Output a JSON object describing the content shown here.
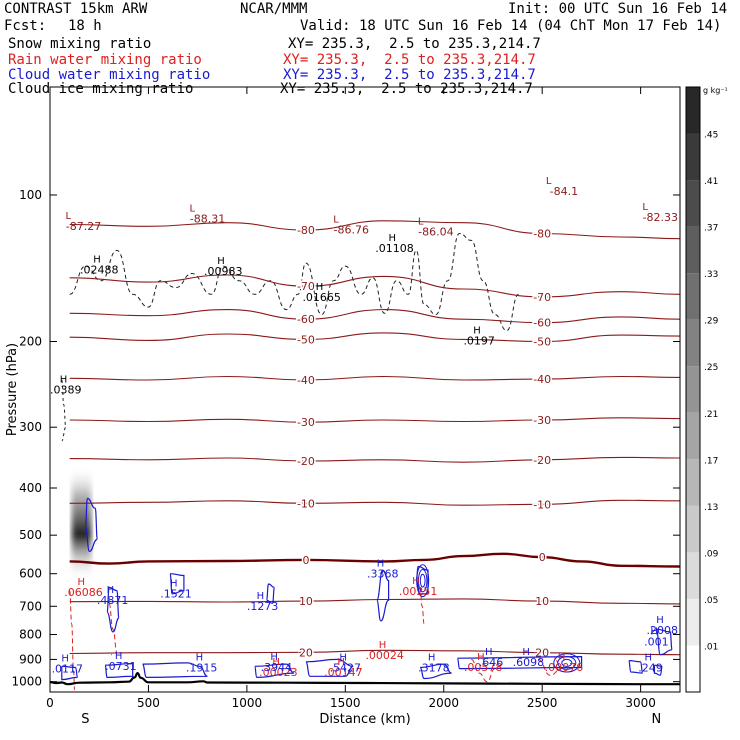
{
  "header": {
    "model": "CONTRAST 15km ARW",
    "center": "NCAR/MMM",
    "init": "Init: 00 UTC Sun 16 Feb 14",
    "fcst_label": "Fcst:",
    "fcst_value": "18 h",
    "valid": "Valid: 18 UTC Sun 16 Feb 14 (04 ChT Mon 17 Feb 14)",
    "fields": [
      {
        "name": "Snow mixing ratio",
        "xy": "XY= 235.3,  2.5 to 235.3,214.7",
        "color": "#000000"
      },
      {
        "name": "Rain water mixing ratio",
        "xy": "XY= 235.3,  2.5 to 235.3,214.7",
        "color": "#dd2020"
      },
      {
        "name": "Cloud water mixing ratio",
        "xy": "XY= 235.3,  2.5 to 235.3,214.7",
        "color": "#1a1ad0"
      },
      {
        "name": "Cloud ice mixing ratio",
        "xy": "XY= 235.3,  2.5 to 235.3,214.7",
        "color": "#000000"
      }
    ]
  },
  "chart_data": {
    "type": "cross-section",
    "xlabel": "Distance (km)",
    "ylabel": "Pressure (hPa)",
    "xlim": [
      0,
      3200
    ],
    "ylim": [
      1050,
      60
    ],
    "x_ticks": [
      0,
      500,
      1000,
      1500,
      2000,
      2500,
      3000
    ],
    "y_ticks": [
      100,
      200,
      300,
      400,
      500,
      600,
      700,
      800,
      900,
      1000
    ],
    "direction_labels": [
      {
        "x": 180,
        "text": "S"
      },
      {
        "x": 3080,
        "text": "N"
      }
    ],
    "colorbar": {
      "unit": "g kg⁻¹",
      "levels": [
        ".01",
        ".05",
        ".09",
        ".13",
        ".17",
        ".21",
        ".25",
        ".29",
        ".33",
        ".37",
        ".41",
        ".45"
      ]
    },
    "temperature_isotherms": [
      {
        "value": "-80",
        "points": [
          [
            100,
            115
          ],
          [
            500,
            116
          ],
          [
            900,
            114
          ],
          [
            1300,
            118
          ],
          [
            1700,
            113
          ],
          [
            2100,
            114
          ],
          [
            2500,
            120
          ],
          [
            2900,
            122
          ],
          [
            3200,
            123
          ]
        ]
      },
      {
        "value": "-70",
        "points": [
          [
            100,
            148
          ],
          [
            500,
            151
          ],
          [
            900,
            146
          ],
          [
            1300,
            154
          ],
          [
            1700,
            147
          ],
          [
            2100,
            156
          ],
          [
            2500,
            162
          ],
          [
            2900,
            158
          ],
          [
            3200,
            160
          ]
        ]
      },
      {
        "value": "-60",
        "points": [
          [
            100,
            175
          ],
          [
            500,
            177
          ],
          [
            900,
            172
          ],
          [
            1300,
            180
          ],
          [
            1700,
            172
          ],
          [
            2100,
            180
          ],
          [
            2500,
            183
          ],
          [
            2900,
            178
          ],
          [
            3200,
            180
          ]
        ]
      },
      {
        "value": "-50",
        "points": [
          [
            100,
            196
          ],
          [
            500,
            199
          ],
          [
            900,
            193
          ],
          [
            1300,
            198
          ],
          [
            1700,
            192
          ],
          [
            2100,
            198
          ],
          [
            2500,
            200
          ],
          [
            2900,
            194
          ],
          [
            3200,
            195
          ]
        ]
      },
      {
        "value": "-40",
        "points": [
          [
            100,
            238
          ],
          [
            500,
            240
          ],
          [
            900,
            236
          ],
          [
            1300,
            240
          ],
          [
            1700,
            236
          ],
          [
            2100,
            240
          ],
          [
            2500,
            239
          ],
          [
            2900,
            236
          ],
          [
            3200,
            237
          ]
        ]
      },
      {
        "value": "-30",
        "points": [
          [
            100,
            290
          ],
          [
            500,
            292
          ],
          [
            900,
            289
          ],
          [
            1300,
            293
          ],
          [
            1700,
            290
          ],
          [
            2100,
            292
          ],
          [
            2500,
            290
          ],
          [
            2900,
            287
          ],
          [
            3200,
            288
          ]
        ]
      },
      {
        "value": "-20",
        "points": [
          [
            100,
            348
          ],
          [
            500,
            350
          ],
          [
            900,
            347
          ],
          [
            1300,
            352
          ],
          [
            1700,
            350
          ],
          [
            2100,
            354
          ],
          [
            2500,
            350
          ],
          [
            2900,
            346
          ],
          [
            3200,
            347
          ]
        ]
      },
      {
        "value": "-10",
        "points": [
          [
            100,
            430
          ],
          [
            500,
            428
          ],
          [
            900,
            425
          ],
          [
            1300,
            430
          ],
          [
            1700,
            428
          ],
          [
            2100,
            434
          ],
          [
            2500,
            432
          ],
          [
            2900,
            424
          ],
          [
            3200,
            425
          ]
        ]
      },
      {
        "value": "0",
        "points": [
          [
            100,
            566
          ],
          [
            300,
            572
          ],
          [
            500,
            566
          ],
          [
            900,
            565
          ],
          [
            1300,
            562
          ],
          [
            1700,
            566
          ],
          [
            1900,
            562
          ],
          [
            2100,
            552
          ],
          [
            2300,
            546
          ],
          [
            2500,
            555
          ],
          [
            2700,
            566
          ],
          [
            2900,
            578
          ],
          [
            3200,
            580
          ]
        ]
      },
      {
        "value": "10",
        "points": [
          [
            100,
            685
          ],
          [
            500,
            684
          ],
          [
            900,
            686
          ],
          [
            1300,
            683
          ],
          [
            1700,
            678
          ],
          [
            2100,
            676
          ],
          [
            2500,
            683
          ],
          [
            2900,
            690
          ],
          [
            3200,
            692
          ]
        ]
      },
      {
        "value": "20",
        "points": [
          [
            100,
            875
          ],
          [
            500,
            872
          ],
          [
            900,
            872
          ],
          [
            1300,
            870
          ],
          [
            1700,
            862
          ],
          [
            2100,
            864
          ],
          [
            2500,
            872
          ],
          [
            2900,
            878
          ],
          [
            3200,
            880
          ]
        ]
      }
    ],
    "field_labels": [
      {
        "x": 170,
        "p": 118,
        "text": "-87.27",
        "field": "temperature"
      },
      {
        "x": 800,
        "p": 114,
        "text": "-88.31",
        "field": "temperature"
      },
      {
        "x": 1530,
        "p": 120,
        "text": "-86.76",
        "field": "temperature"
      },
      {
        "x": 1960,
        "p": 121,
        "text": "-86.04",
        "field": "temperature"
      },
      {
        "x": 2610,
        "p": 100,
        "text": "-84.1",
        "field": "temperature"
      },
      {
        "x": 3100,
        "p": 113,
        "text": "-82.33",
        "field": "temperature"
      },
      {
        "x": 250,
        "p": 145,
        "text": ".02488",
        "field": "snow"
      },
      {
        "x": 880,
        "p": 146,
        "text": ".00983",
        "field": "snow"
      },
      {
        "x": 1380,
        "p": 165,
        "text": ".01665",
        "field": "snow"
      },
      {
        "x": 1750,
        "p": 131,
        "text": ".01108",
        "field": "snow"
      },
      {
        "x": 2180,
        "p": 203,
        "text": ".0197",
        "field": "snow"
      },
      {
        "x": 80,
        "p": 256,
        "text": ".0389",
        "field": "ice"
      },
      {
        "x": 170,
        "p": 666,
        "text": ".06086",
        "field": "rain"
      },
      {
        "x": 1870,
        "p": 663,
        "text": ".00251",
        "field": "rain"
      },
      {
        "x": 1700,
        "p": 898,
        "text": ".00024",
        "field": "rain"
      },
      {
        "x": 1160,
        "p": 974,
        "text": ".00023",
        "field": "rain"
      },
      {
        "x": 1490,
        "p": 974,
        "text": ".00147",
        "field": "rain"
      },
      {
        "x": 2200,
        "p": 950,
        "text": ".00578",
        "field": "rain"
      },
      {
        "x": 2610,
        "p": 951,
        "text": ".00076",
        "field": "rain"
      },
      {
        "x": 318,
        "p": 692,
        "text": ".4871",
        "field": "cloud"
      },
      {
        "x": 640,
        "p": 671,
        "text": ".1521",
        "field": "cloud"
      },
      {
        "x": 1080,
        "p": 712,
        "text": ".1273",
        "field": "cloud"
      },
      {
        "x": 1690,
        "p": 611,
        "text": ".3368",
        "field": "cloud"
      },
      {
        "x": 88,
        "p": 958,
        "text": ".0117",
        "field": "cloud"
      },
      {
        "x": 360,
        "p": 947,
        "text": ".0731",
        "field": "cloud"
      },
      {
        "x": 770,
        "p": 953,
        "text": ".1915",
        "field": "cloud"
      },
      {
        "x": 1150,
        "p": 950,
        "text": ".3944",
        "field": "cloud"
      },
      {
        "x": 1500,
        "p": 953,
        "text": ".5427",
        "field": "cloud"
      },
      {
        "x": 1950,
        "p": 952,
        "text": ".3178",
        "field": "cloud"
      },
      {
        "x": 2240,
        "p": 929,
        "text": ".646",
        "field": "cloud"
      },
      {
        "x": 2430,
        "p": 929,
        "text": ".6098",
        "field": "cloud"
      },
      {
        "x": 3050,
        "p": 952,
        "text": ".249",
        "field": "cloud"
      },
      {
        "x": 3110,
        "p": 798,
        "text": ".2008",
        "field": "cloud"
      },
      {
        "x": 3080,
        "p": 842,
        "text": ".001",
        "field": "cloud"
      }
    ],
    "terrain": [
      [
        0,
        1002
      ],
      [
        30,
        1006
      ],
      [
        60,
        1004
      ],
      [
        90,
        1012
      ],
      [
        150,
        1005
      ],
      [
        300,
        1003
      ],
      [
        400,
        1000
      ],
      [
        430,
        980
      ],
      [
        445,
        960
      ],
      [
        460,
        982
      ],
      [
        500,
        1003
      ],
      [
        700,
        1003
      ],
      [
        780,
        998
      ],
      [
        800,
        1004
      ],
      [
        1200,
        1005
      ],
      [
        1600,
        1006
      ],
      [
        2000,
        1008
      ],
      [
        2500,
        1010
      ],
      [
        3000,
        1012
      ],
      [
        3200,
        1012
      ]
    ]
  }
}
